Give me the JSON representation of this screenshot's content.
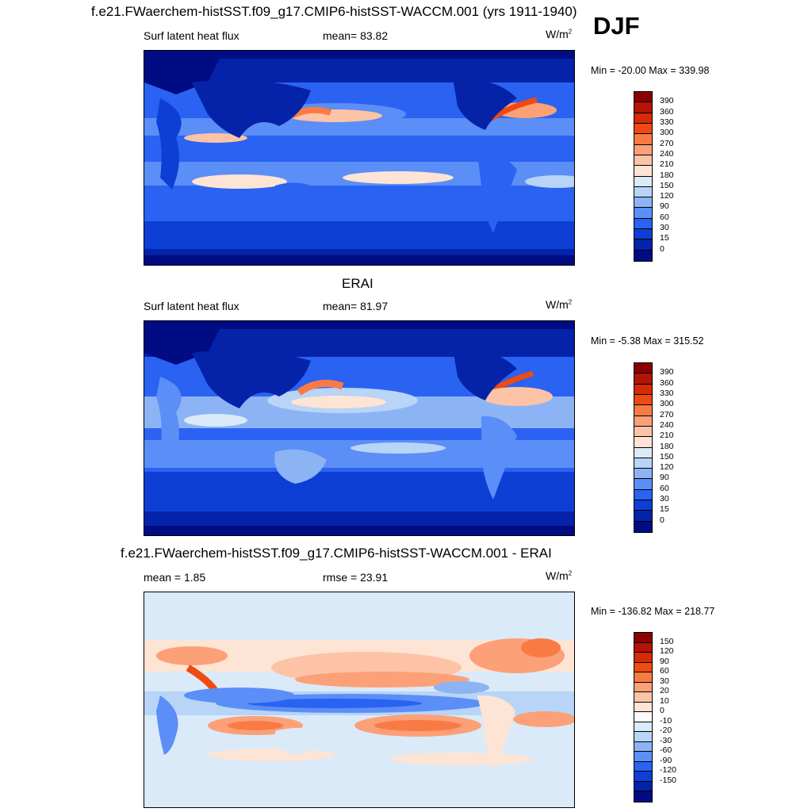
{
  "djf_label": "DJF",
  "panels": [
    {
      "id": "model",
      "title": "f.e21.FWaerchem-histSST.f09_g17.CMIP6-histSST-WACCM.001 (yrs 1911-1940)",
      "left_label": "Surf latent heat flux",
      "stat_label": "mean=  83.82",
      "units": "W/m",
      "units_sup": "2",
      "minmax": "Min = -20.00 Max = 339.98",
      "colorbar": {
        "colors": [
          "#8b0000",
          "#b31405",
          "#d52b07",
          "#ef4a12",
          "#f87b45",
          "#fca078",
          "#fdc3a6",
          "#fde4d4",
          "#dbeaf8",
          "#b8d4f6",
          "#8cb4f5",
          "#5b8ef7",
          "#2a62f2",
          "#0d3fd5",
          "#0523a8",
          "#000c83"
        ],
        "labels": [
          "390",
          "360",
          "330",
          "300",
          "270",
          "240",
          "210",
          "180",
          "150",
          "120",
          "90",
          "60",
          "30",
          "15",
          "0"
        ]
      }
    },
    {
      "id": "obs",
      "title": "ERAI",
      "left_label": "Surf latent heat flux",
      "stat_label": "mean=  81.97",
      "units": "W/m",
      "units_sup": "2",
      "minmax": "Min =  -5.38 Max = 315.52",
      "colorbar": {
        "colors": [
          "#8b0000",
          "#b31405",
          "#d52b07",
          "#ef4a12",
          "#f87b45",
          "#fca078",
          "#fdc3a6",
          "#fde4d4",
          "#dbeaf8",
          "#b8d4f6",
          "#8cb4f5",
          "#5b8ef7",
          "#2a62f2",
          "#0d3fd5",
          "#0523a8",
          "#000c83"
        ],
        "labels": [
          "390",
          "360",
          "330",
          "300",
          "270",
          "240",
          "210",
          "180",
          "150",
          "120",
          "90",
          "60",
          "30",
          "15",
          "0"
        ]
      }
    },
    {
      "id": "diff",
      "title": "f.e21.FWaerchem-histSST.f09_g17.CMIP6-histSST-WACCM.001 - ERAI",
      "left_label": "mean =   1.85",
      "stat_label": "rmse =  23.91",
      "units": "W/m",
      "units_sup": "2",
      "minmax": "Min = -136.82 Max = 218.77",
      "colorbar": {
        "colors": [
          "#8b0000",
          "#b31405",
          "#d52b07",
          "#ef4a12",
          "#f87b45",
          "#fca078",
          "#fdc3a6",
          "#fde4d4",
          "#fdfcf9",
          "#dbeaf8",
          "#b8d4f6",
          "#8cb4f5",
          "#5b8ef7",
          "#2a62f2",
          "#0d3fd5",
          "#0523a8",
          "#000c83"
        ],
        "labels": [
          "150",
          "120",
          "90",
          "60",
          "30",
          "20",
          "10",
          "0",
          "-10",
          "-20",
          "-30",
          "-60",
          "-90",
          "-120",
          "-150"
        ]
      }
    }
  ]
}
